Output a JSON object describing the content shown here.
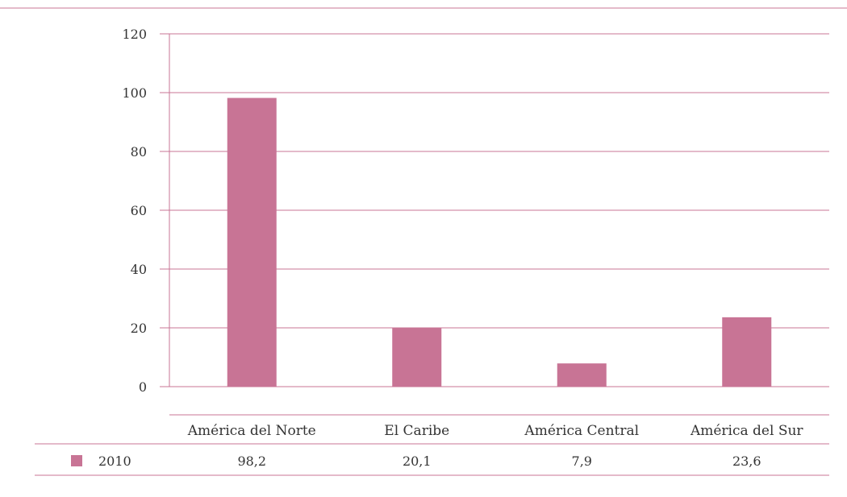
{
  "chart_data": {
    "type": "bar",
    "categories": [
      "América del Norte",
      "El Caribe",
      "América Central",
      "América del Sur"
    ],
    "series": [
      {
        "name": "2010",
        "values": [
          98.2,
          20.1,
          7.9,
          23.6
        ],
        "value_labels": [
          "98,2",
          "20,1",
          "7,9",
          "23,6"
        ],
        "color": "#c87495"
      }
    ],
    "ylim": [
      0,
      120
    ],
    "yticks": [
      0,
      20,
      40,
      60,
      80,
      100,
      120
    ],
    "grid": true,
    "legend": "data-table-bottom",
    "line_color": "#c87495"
  }
}
